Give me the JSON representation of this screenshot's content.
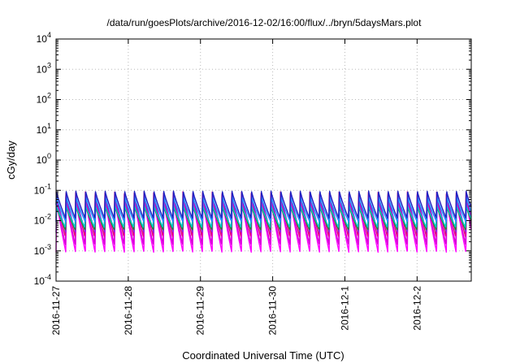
{
  "chart_data": {
    "type": "line",
    "title": "/data/run/goesPlots/archive/2016-12-02/16:00/flux/../bryn/5daysMars.plot",
    "xlabel": "Coordinated Universal Time (UTC)",
    "ylabel": "cGy/day",
    "yscale": "log",
    "ylim": [
      0.0001,
      10000
    ],
    "xlim": [
      "2016-11-27 00:00",
      "2016-12-02 18:00"
    ],
    "grid": true,
    "x_ticks": [
      "2016-11-27",
      "2016-11-28",
      "2016-11-29",
      "2016-11-30",
      "2016-12-1",
      "2016-12-2"
    ],
    "y_ticks": [
      {
        "base": "10",
        "exp": "4"
      },
      {
        "base": "10",
        "exp": "3"
      },
      {
        "base": "10",
        "exp": "2"
      },
      {
        "base": "10",
        "exp": "1"
      },
      {
        "base": "10",
        "exp": "0"
      },
      {
        "base": "10",
        "exp": "-1"
      },
      {
        "base": "10",
        "exp": "-2"
      },
      {
        "base": "10",
        "exp": "-3"
      },
      {
        "base": "10",
        "exp": "-4"
      }
    ],
    "pattern": {
      "description": "sawtooth, sharp rise then gradual decay, repeating",
      "cycles_per_day": 7.4,
      "series_count": 8
    },
    "series": [
      {
        "color": "#ff00ff",
        "peak": 0.05,
        "trough": 0.0009
      },
      {
        "color": "#d600d6",
        "peak": 0.06,
        "trough": 0.0016
      },
      {
        "color": "#e4007c",
        "peak": 0.09,
        "trough": 0.003
      },
      {
        "color": "#8a2be2",
        "peak": 0.07,
        "trough": 0.004
      },
      {
        "color": "#228b22",
        "peak": 0.03,
        "trough": 0.005
      },
      {
        "color": "#00c8c8",
        "peak": 0.035,
        "trough": 0.006
      },
      {
        "color": "#1e90ff",
        "peak": 0.06,
        "trough": 0.009
      },
      {
        "color": "#2020c0",
        "peak": 0.095,
        "trough": 0.012
      }
    ]
  }
}
